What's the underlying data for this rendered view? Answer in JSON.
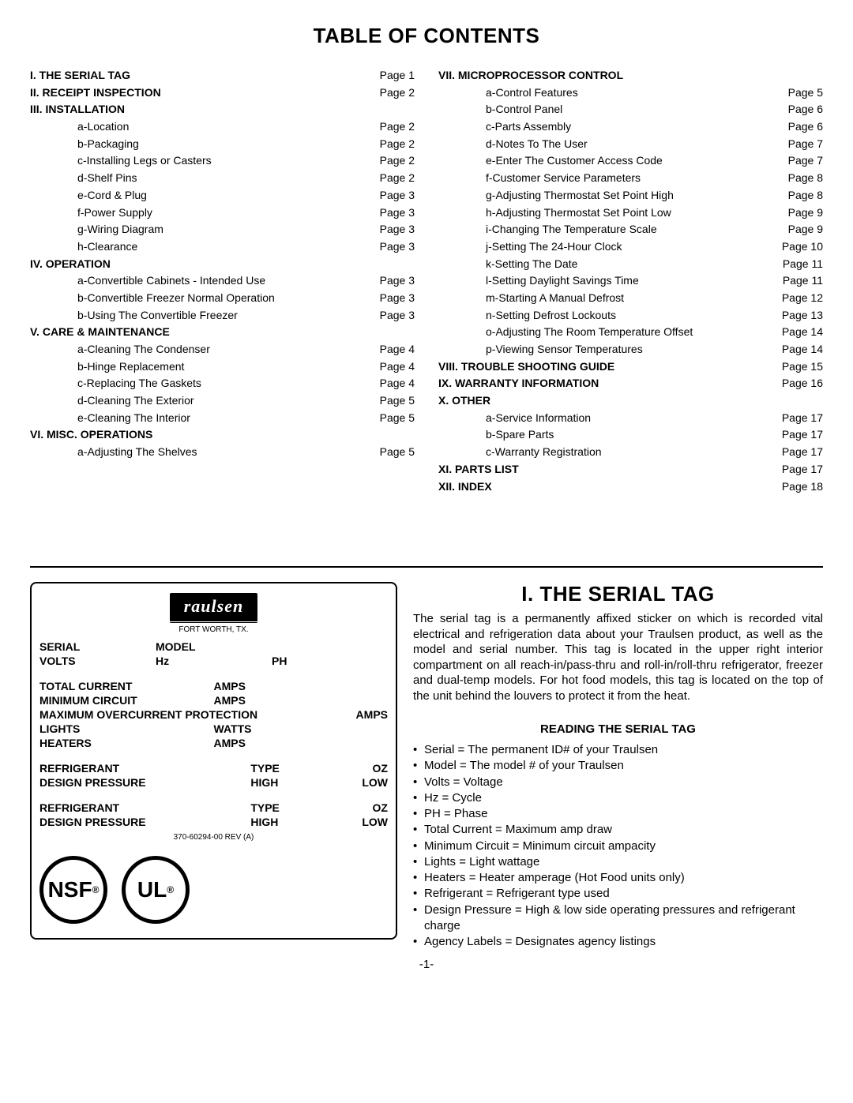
{
  "title": "TABLE OF CONTENTS",
  "toc_left": [
    {
      "label": "I. THE SERIAL TAG",
      "page": "Page 1",
      "section": true
    },
    {
      "label": "II. RECEIPT INSPECTION",
      "page": "Page 2",
      "section": true
    },
    {
      "label": "III. INSTALLATION",
      "page": "",
      "section": true
    },
    {
      "label": "a-Location",
      "page": "Page 2",
      "sub": true
    },
    {
      "label": "b-Packaging",
      "page": "Page 2",
      "sub": true
    },
    {
      "label": "c-Installing Legs or Casters",
      "page": "Page 2",
      "sub": true
    },
    {
      "label": "d-Shelf Pins",
      "page": "Page 2",
      "sub": true
    },
    {
      "label": "e-Cord & Plug",
      "page": "Page 3",
      "sub": true
    },
    {
      "label": "f-Power Supply",
      "page": "Page 3",
      "sub": true
    },
    {
      "label": "g-Wiring Diagram",
      "page": "Page 3",
      "sub": true
    },
    {
      "label": "h-Clearance",
      "page": "Page 3",
      "sub": true
    },
    {
      "label": "IV. OPERATION",
      "page": "",
      "section": true
    },
    {
      "label": "a-Convertible Cabinets - Intended Use",
      "page": "Page 3",
      "sub": true
    },
    {
      "label": "b-Convertible Freezer Normal Operation",
      "page": "Page 3",
      "sub": true
    },
    {
      "label": "b-Using The Convertible Freezer",
      "page": "Page 3",
      "sub": true
    },
    {
      "label": "V. CARE & MAINTENANCE",
      "page": "",
      "section": true
    },
    {
      "label": "a-Cleaning The Condenser",
      "page": "Page 4",
      "sub": true
    },
    {
      "label": "b-Hinge Replacement",
      "page": "Page 4",
      "sub": true
    },
    {
      "label": "c-Replacing The Gaskets",
      "page": "Page 4",
      "sub": true
    },
    {
      "label": "d-Cleaning The Exterior",
      "page": "Page 5",
      "sub": true
    },
    {
      "label": "e-Cleaning The Interior",
      "page": "Page 5",
      "sub": true
    },
    {
      "label": "VI. MISC. OPERATIONS",
      "page": "",
      "section": true
    },
    {
      "label": "a-Adjusting The Shelves",
      "page": "Page 5",
      "sub": true
    }
  ],
  "toc_right": [
    {
      "label": "VII. MICROPROCESSOR CONTROL",
      "page": "",
      "section": true
    },
    {
      "label": "a-Control Features",
      "page": "Page 5",
      "sub": true
    },
    {
      "label": "b-Control Panel",
      "page": "Page 6",
      "sub": true
    },
    {
      "label": "c-Parts Assembly",
      "page": "Page 6",
      "sub": true
    },
    {
      "label": "d-Notes To The User",
      "page": "Page 7",
      "sub": true
    },
    {
      "label": "e-Enter The Customer Access Code",
      "page": "Page 7",
      "sub": true
    },
    {
      "label": "f-Customer Service Parameters",
      "page": "Page 8",
      "sub": true
    },
    {
      "label": "g-Adjusting Thermostat Set Point High",
      "page": "Page 8",
      "sub": true
    },
    {
      "label": "h-Adjusting Thermostat Set Point Low",
      "page": "Page 9",
      "sub": true
    },
    {
      "label": "i-Changing The Temperature Scale",
      "page": "Page 9",
      "sub": true
    },
    {
      "label": "j-Setting The 24-Hour Clock",
      "page": "Page 10",
      "sub": true
    },
    {
      "label": "k-Setting The Date",
      "page": "Page 11",
      "sub": true
    },
    {
      "label": "l-Setting Daylight Savings Time",
      "page": "Page 11",
      "sub": true
    },
    {
      "label": "m-Starting A Manual Defrost",
      "page": "Page 12",
      "sub": true
    },
    {
      "label": "n-Setting Defrost Lockouts",
      "page": "Page 13",
      "sub": true
    },
    {
      "label": "o-Adjusting The Room Temperature Offset",
      "page": "Page 14",
      "sub": true
    },
    {
      "label": "p-Viewing Sensor Temperatures",
      "page": "Page 14",
      "sub": true
    },
    {
      "label": "VIII. TROUBLE SHOOTING GUIDE",
      "page": "Page 15",
      "section": true
    },
    {
      "label": "IX. WARRANTY INFORMATION",
      "page": "Page 16",
      "section": true
    },
    {
      "label": "X. OTHER",
      "page": "",
      "section": true
    },
    {
      "label": "a-Service Information",
      "page": "Page 17",
      "sub": true
    },
    {
      "label": "b-Spare Parts",
      "page": "Page 17",
      "sub": true
    },
    {
      "label": "c-Warranty Registration",
      "page": "Page 17",
      "sub": true
    },
    {
      "label": "XI. PARTS LIST",
      "page": "Page 17",
      "section": true
    },
    {
      "label": "XII. INDEX",
      "page": "Page 18",
      "section": true
    }
  ],
  "brand": {
    "name": "raulsen",
    "location": "FORT WORTH, TX."
  },
  "tag": {
    "serial": "SERIAL",
    "model": "MODEL",
    "volts": "VOLTS",
    "hz": "Hz",
    "ph": "PH",
    "total_current": "TOTAL CURRENT",
    "amps": "AMPS",
    "min_circuit": "MINIMUM CIRCUIT",
    "max_over": "MAXIMUM OVERCURRENT PROTECTION",
    "lights": "LIGHTS",
    "watts": "WATTS",
    "heaters": "HEATERS",
    "refrigerant": "REFRIGERANT",
    "type": "TYPE",
    "oz": "OZ",
    "design_pressure": "DESIGN PRESSURE",
    "high": "HIGH",
    "low": "LOW",
    "rev": "370-60294-00 REV (A)"
  },
  "cert": {
    "nsf": "NSF",
    "nsf_sub": "®",
    "ul": "U",
    "ul2": "L",
    "ul_sub": "®"
  },
  "section1": {
    "title": "I. THE SERIAL TAG",
    "body": "The serial tag is a permanently affixed sticker on which is recorded vital electrical and refrigeration data about your Traulsen product, as well as the model and serial number.  This tag is located in the upper right interior compartment on all reach-in/pass-thru and roll-in/roll-thru refrigerator, freezer and dual-temp models.  For hot food models, this tag is located on the top of the unit behind the louvers to protect it from the heat.",
    "subheading": "READING THE SERIAL TAG",
    "bullets": [
      "Serial = The permanent ID# of your Traulsen",
      "Model = The model # of your Traulsen",
      "Volts = Voltage",
      "Hz = Cycle",
      "PH = Phase",
      "Total Current = Maximum amp draw",
      "Minimum Circuit = Minimum circuit ampacity",
      "Lights = Light wattage",
      "Heaters = Heater amperage (Hot Food units only)",
      "Refrigerant = Refrigerant type used",
      "Design Pressure = High & low side operating pressures and refrigerant charge",
      "Agency Labels = Designates agency listings"
    ]
  },
  "pagenum": "-1-"
}
